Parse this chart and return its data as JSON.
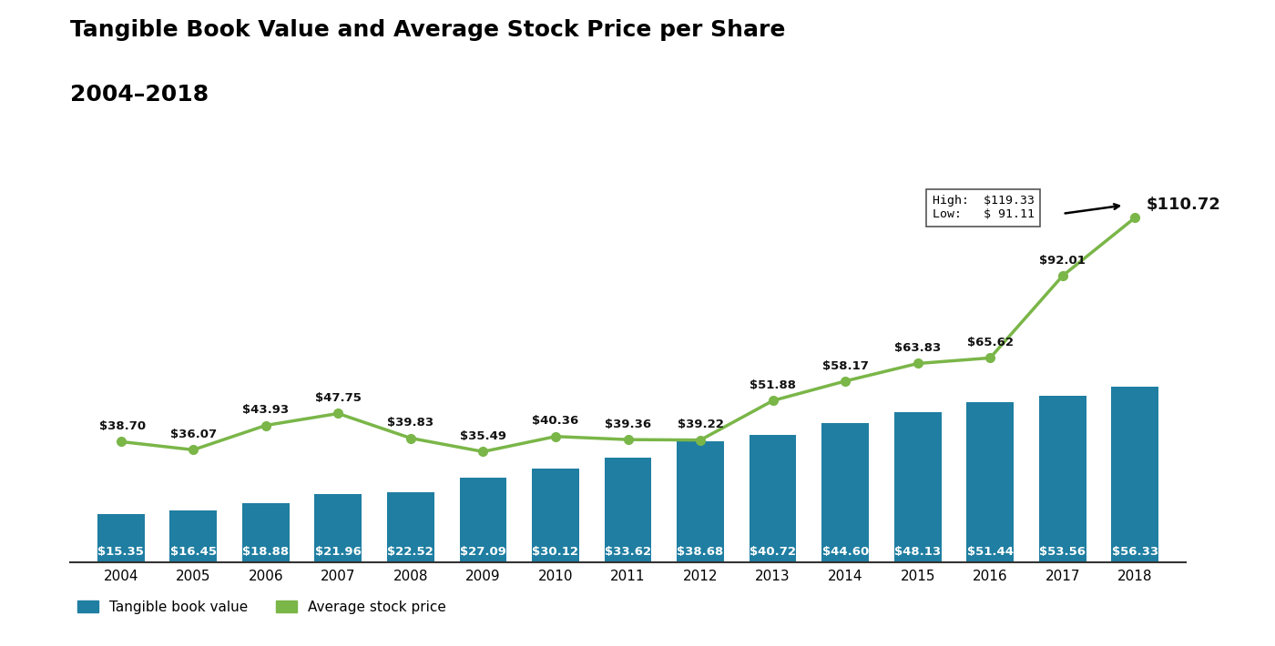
{
  "years": [
    2004,
    2005,
    2006,
    2007,
    2008,
    2009,
    2010,
    2011,
    2012,
    2013,
    2014,
    2015,
    2016,
    2017,
    2018
  ],
  "book_values": [
    15.35,
    16.45,
    18.88,
    21.96,
    22.52,
    27.09,
    30.12,
    33.62,
    38.68,
    40.72,
    44.6,
    48.13,
    51.44,
    53.56,
    56.33
  ],
  "stock_prices": [
    38.7,
    36.07,
    43.93,
    47.75,
    39.83,
    35.49,
    40.36,
    39.36,
    39.22,
    51.88,
    58.17,
    63.83,
    65.62,
    92.01,
    110.72
  ],
  "bar_color": "#1f7ea1",
  "line_color": "#7ab648",
  "title_line1": "Tangible Book Value and Average Stock Price per Share",
  "title_line2": "2004–2018",
  "legend_bar_label": "Tangible book value",
  "legend_line_label": "Average stock price",
  "annotation_high": "High:  $119.33",
  "annotation_low": "Low:   $ 91.11",
  "background_color": "#ffffff",
  "ylim_max": 135,
  "bar_label_color": "#ffffff",
  "stock_label_color": "#111111",
  "title_fontsize": 18,
  "bar_label_fontsize": 9.5,
  "stock_label_fontsize": 9.5,
  "axis_fontsize": 11
}
